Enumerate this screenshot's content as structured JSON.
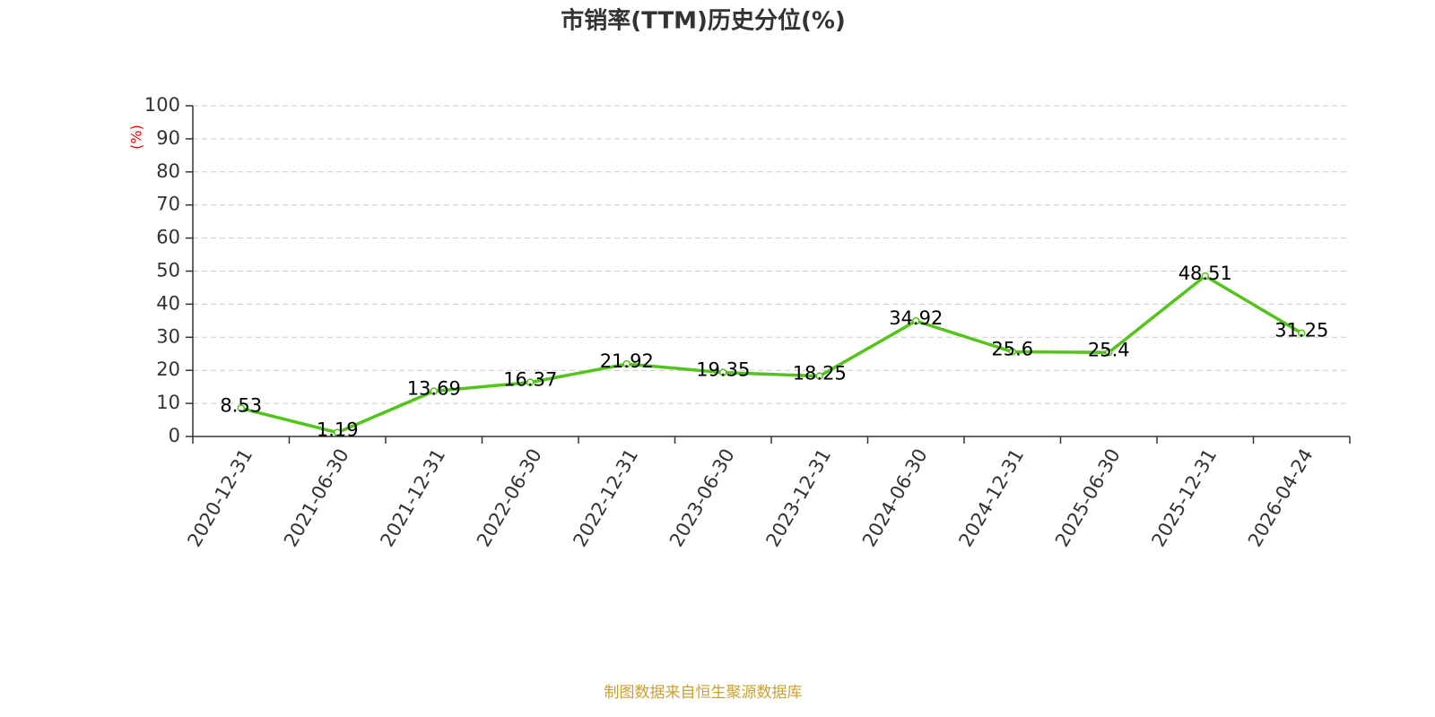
{
  "chart_data": {
    "type": "line",
    "title": "市销率(TTM)历史分位(%)",
    "y_label": "(%)",
    "categories": [
      "2020-12-31",
      "2021-06-30",
      "2021-12-31",
      "2022-06-30",
      "2022-12-31",
      "2023-06-30",
      "2023-12-31",
      "2024-06-30",
      "2024-12-31",
      "2025-06-30",
      "2025-12-31",
      "2026-04-24"
    ],
    "series": [
      {
        "name": "市销率(TTM)历史分位",
        "color": "#52c41a",
        "values": [
          8.53,
          1.19,
          13.69,
          16.37,
          21.92,
          19.35,
          18.25,
          34.92,
          25.6,
          25.4,
          48.51,
          31.25
        ]
      }
    ],
    "ylim": [
      0,
      100
    ],
    "yticks": [
      0,
      10,
      20,
      30,
      40,
      50,
      60,
      70,
      80,
      90,
      100
    ],
    "grid": true,
    "source": "制图数据来自恒生聚源数据库"
  }
}
